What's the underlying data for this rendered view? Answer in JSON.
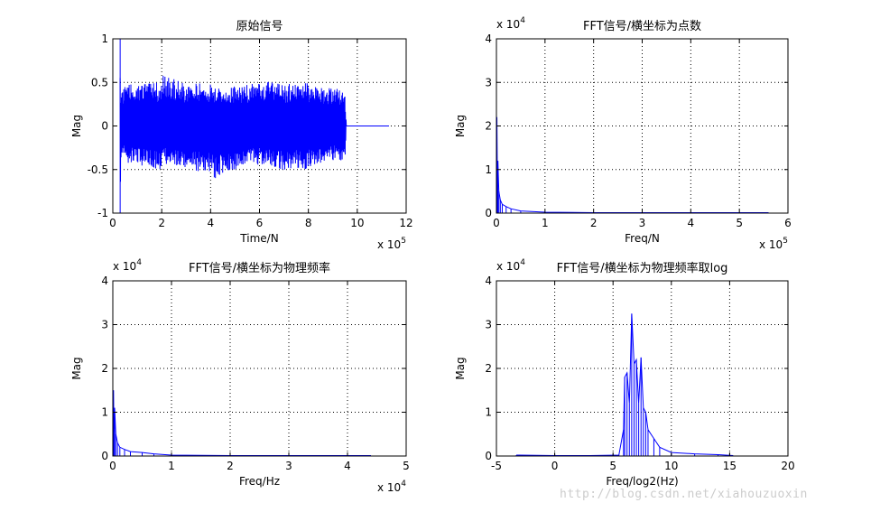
{
  "chart_data": [
    {
      "type": "line",
      "title": "原始信号",
      "xlabel": "Time/N",
      "ylabel": "Mag",
      "xlim": [
        0,
        12
      ],
      "ylim": [
        -1,
        1
      ],
      "xticks": [
        0,
        2,
        4,
        6,
        8,
        10,
        12
      ],
      "yticks": [
        -1,
        -0.5,
        0,
        0.5,
        1
      ],
      "xtick_labels": [
        "0",
        "2",
        "4",
        "6",
        "8",
        "10",
        "12"
      ],
      "ytick_labels": [
        "-1",
        "-0.5",
        "0",
        "0.5",
        "1"
      ],
      "x_exponent": {
        "base": "x 10",
        "power": "5"
      },
      "y_exponent": null,
      "grid": true,
      "series_color": "#0000ff",
      "series": [
        {
          "x": [
            0.3,
            0.32,
            0.34,
            0.35,
            1.0,
            2.0,
            2.05,
            3.0,
            4.0,
            4.2,
            5.0,
            6.0,
            6.2,
            7.0,
            8.0,
            8.2,
            9.0,
            9.5,
            9.55,
            11.3
          ],
          "envelope_upper": [
            1.0,
            0.45,
            0.5,
            0.45,
            0.5,
            0.5,
            0.6,
            0.48,
            0.5,
            0.45,
            0.46,
            0.5,
            0.52,
            0.48,
            0.5,
            0.46,
            0.45,
            0.4,
            0.0,
            0.0
          ],
          "envelope_lower": [
            -1.0,
            -0.45,
            -0.45,
            -0.4,
            -0.45,
            -0.5,
            -0.45,
            -0.5,
            -0.55,
            -0.62,
            -0.5,
            -0.45,
            -0.48,
            -0.5,
            -0.5,
            -0.45,
            -0.4,
            -0.4,
            0.0,
            0.0
          ]
        }
      ]
    },
    {
      "type": "line",
      "title": "FFT信号/横坐标为点数",
      "xlabel": "Freq/N",
      "ylabel": "Mag",
      "xlim": [
        0,
        6
      ],
      "ylim": [
        0,
        4
      ],
      "xticks": [
        0,
        1,
        2,
        3,
        4,
        5,
        6
      ],
      "yticks": [
        0,
        1,
        2,
        3,
        4
      ],
      "xtick_labels": [
        "0",
        "1",
        "2",
        "3",
        "4",
        "5",
        "6"
      ],
      "ytick_labels": [
        "0",
        "1",
        "2",
        "3",
        "4"
      ],
      "x_exponent": {
        "base": "x 10",
        "power": "5"
      },
      "y_exponent": {
        "base": "x 10",
        "power": "4"
      },
      "grid": true,
      "series_color": "#0000ff",
      "series": [
        {
          "x": [
            0,
            0.01,
            0.02,
            0.03,
            0.05,
            0.08,
            0.12,
            0.2,
            0.3,
            0.5,
            1.0,
            2.0,
            3.0,
            4.0,
            5.0,
            5.6
          ],
          "y": [
            0.1,
            2.2,
            0.6,
            1.2,
            0.5,
            0.3,
            0.2,
            0.15,
            0.1,
            0.05,
            0.02,
            0.01,
            0.01,
            0.01,
            0.01,
            0.01
          ]
        }
      ]
    },
    {
      "type": "line",
      "title": "FFT信号/横坐标为物理频率",
      "xlabel": "Freq/Hz",
      "ylabel": "Mag",
      "xlim": [
        0,
        5
      ],
      "ylim": [
        0,
        4
      ],
      "xticks": [
        0,
        1,
        2,
        3,
        4,
        5
      ],
      "yticks": [
        0,
        1,
        2,
        3,
        4
      ],
      "xtick_labels": [
        "0",
        "1",
        "2",
        "3",
        "4",
        "5"
      ],
      "ytick_labels": [
        "0",
        "1",
        "2",
        "3",
        "4"
      ],
      "x_exponent": {
        "base": "x 10",
        "power": "4"
      },
      "y_exponent": {
        "base": "x 10",
        "power": "4"
      },
      "grid": true,
      "series_color": "#0000ff",
      "series": [
        {
          "x": [
            0,
            0.01,
            0.02,
            0.03,
            0.05,
            0.08,
            0.12,
            0.2,
            0.3,
            0.5,
            0.7,
            1.0,
            2.0,
            3.0,
            4.0,
            4.4
          ],
          "y": [
            0.1,
            1.5,
            0.6,
            1.1,
            0.5,
            0.3,
            0.2,
            0.15,
            0.1,
            0.08,
            0.05,
            0.02,
            0.01,
            0.01,
            0.01,
            0.01
          ]
        }
      ]
    },
    {
      "type": "line",
      "title": "FFT信号/横坐标为物理频率取log",
      "xlabel": "Freq/log2(Hz)",
      "ylabel": "Mag",
      "xlim": [
        -5,
        20
      ],
      "ylim": [
        0,
        4
      ],
      "xticks": [
        -5,
        0,
        5,
        10,
        15,
        20
      ],
      "yticks": [
        0,
        1,
        2,
        3,
        4
      ],
      "xtick_labels": [
        "-5",
        "0",
        "5",
        "10",
        "15",
        "20"
      ],
      "ytick_labels": [
        "0",
        "1",
        "2",
        "3",
        "4"
      ],
      "x_exponent": null,
      "y_exponent": {
        "base": "x 10",
        "power": "4"
      },
      "grid": true,
      "series_color": "#0000ff",
      "series": [
        {
          "x": [
            -3.3,
            -3.0,
            0.0,
            3.0,
            5.5,
            5.9,
            6.0,
            6.2,
            6.4,
            6.6,
            6.8,
            7.0,
            7.2,
            7.4,
            7.6,
            7.8,
            8.0,
            8.5,
            9.0,
            10.0,
            12.0,
            14.0,
            15.3
          ],
          "y": [
            0.02,
            0.02,
            0.01,
            0.01,
            0.02,
            0.6,
            1.8,
            1.9,
            1.2,
            3.25,
            2.1,
            2.2,
            1.2,
            2.25,
            1.1,
            1.0,
            0.6,
            0.4,
            0.2,
            0.08,
            0.05,
            0.03,
            0.01
          ]
        }
      ]
    }
  ],
  "watermark": "http://blog.csdn.net/xiahouzuoxin"
}
